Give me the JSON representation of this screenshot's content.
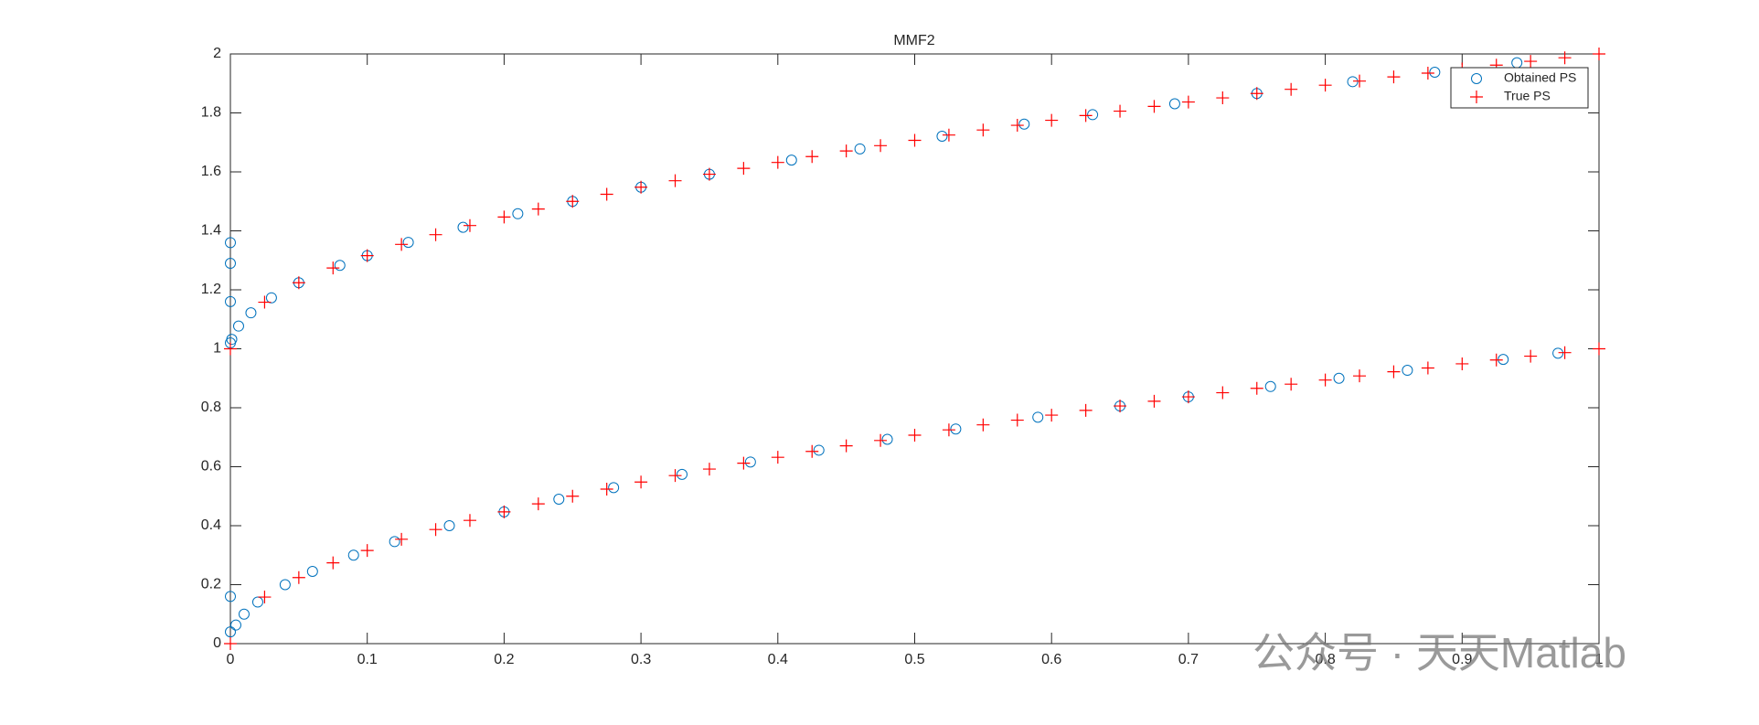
{
  "chart_data": {
    "type": "scatter",
    "title": "MMF2",
    "xlim": [
      0,
      1
    ],
    "ylim": [
      0,
      2
    ],
    "xticks": [
      0,
      0.1,
      0.2,
      0.3,
      0.4,
      0.5,
      0.6,
      0.7,
      0.8,
      0.9,
      1
    ],
    "yticks": [
      0,
      0.2,
      0.4,
      0.6,
      0.8,
      1,
      1.2,
      1.4,
      1.6,
      1.8,
      2
    ],
    "legend": "northeast",
    "grid": false,
    "series": [
      {
        "name": "Obtained PS",
        "color": "#0072bd",
        "marker": "circle",
        "x": [
          0,
          0,
          0.004,
          0.01,
          0.02,
          0.04,
          0.06,
          0.09,
          0.12,
          0.16,
          0.2,
          0.24,
          0.28,
          0.33,
          0.38,
          0.43,
          0.48,
          0.53,
          0.59,
          0.65,
          0.7,
          0.76,
          0.81,
          0.86,
          0.93,
          0.97,
          0,
          0,
          0,
          0,
          0.001,
          0.006,
          0.015,
          0.03,
          0.05,
          0.08,
          0.1,
          0.13,
          0.17,
          0.21,
          0.25,
          0.3,
          0.35,
          0.41,
          0.46,
          0.52,
          0.58,
          0.63,
          0.69,
          0.75,
          0.82,
          0.88,
          0.94
        ],
        "y": [
          0.16,
          0.04,
          0.063,
          0.1,
          0.141,
          0.2,
          0.245,
          0.3,
          0.346,
          0.4,
          0.447,
          0.49,
          0.529,
          0.574,
          0.616,
          0.656,
          0.693,
          0.728,
          0.768,
          0.806,
          0.837,
          0.872,
          0.9,
          0.927,
          0.964,
          0.985,
          1.36,
          1.29,
          1.16,
          1.02,
          1.032,
          1.077,
          1.122,
          1.173,
          1.224,
          1.283,
          1.316,
          1.361,
          1.412,
          1.458,
          1.5,
          1.548,
          1.592,
          1.64,
          1.678,
          1.721,
          1.762,
          1.794,
          1.831,
          1.866,
          1.906,
          1.938,
          1.97
        ]
      },
      {
        "name": "True PS",
        "color": "#ff0000",
        "marker": "plus",
        "x": [
          0,
          0.025,
          0.05,
          0.075,
          0.1,
          0.125,
          0.15,
          0.175,
          0.2,
          0.225,
          0.25,
          0.275,
          0.3,
          0.325,
          0.35,
          0.375,
          0.4,
          0.425,
          0.45,
          0.475,
          0.5,
          0.525,
          0.55,
          0.575,
          0.6,
          0.625,
          0.65,
          0.675,
          0.7,
          0.725,
          0.75,
          0.775,
          0.8,
          0.825,
          0.85,
          0.875,
          0.9,
          0.925,
          0.95,
          0.975,
          1,
          0,
          0.025,
          0.05,
          0.075,
          0.1,
          0.125,
          0.15,
          0.175,
          0.2,
          0.225,
          0.25,
          0.275,
          0.3,
          0.325,
          0.35,
          0.375,
          0.4,
          0.425,
          0.45,
          0.475,
          0.5,
          0.525,
          0.55,
          0.575,
          0.6,
          0.625,
          0.65,
          0.675,
          0.7,
          0.725,
          0.75,
          0.775,
          0.8,
          0.825,
          0.85,
          0.875,
          0.9,
          0.925,
          0.95,
          0.975,
          1
        ],
        "y": [
          0,
          0.158,
          0.224,
          0.274,
          0.316,
          0.354,
          0.387,
          0.418,
          0.447,
          0.474,
          0.5,
          0.524,
          0.548,
          0.57,
          0.592,
          0.612,
          0.632,
          0.652,
          0.671,
          0.689,
          0.707,
          0.725,
          0.742,
          0.758,
          0.775,
          0.791,
          0.806,
          0.822,
          0.837,
          0.851,
          0.866,
          0.88,
          0.894,
          0.908,
          0.922,
          0.935,
          0.949,
          0.962,
          0.975,
          0.987,
          1,
          1,
          1.158,
          1.224,
          1.274,
          1.316,
          1.354,
          1.387,
          1.418,
          1.447,
          1.474,
          1.5,
          1.524,
          1.548,
          1.57,
          1.592,
          1.612,
          1.632,
          1.652,
          1.671,
          1.689,
          1.707,
          1.725,
          1.742,
          1.758,
          1.775,
          1.791,
          1.806,
          1.822,
          1.837,
          1.851,
          1.866,
          1.88,
          1.894,
          1.908,
          1.922,
          1.935,
          1.949,
          1.962,
          1.975,
          1.987,
          2
        ]
      }
    ],
    "watermark": "公众号 · 天天Matlab"
  }
}
